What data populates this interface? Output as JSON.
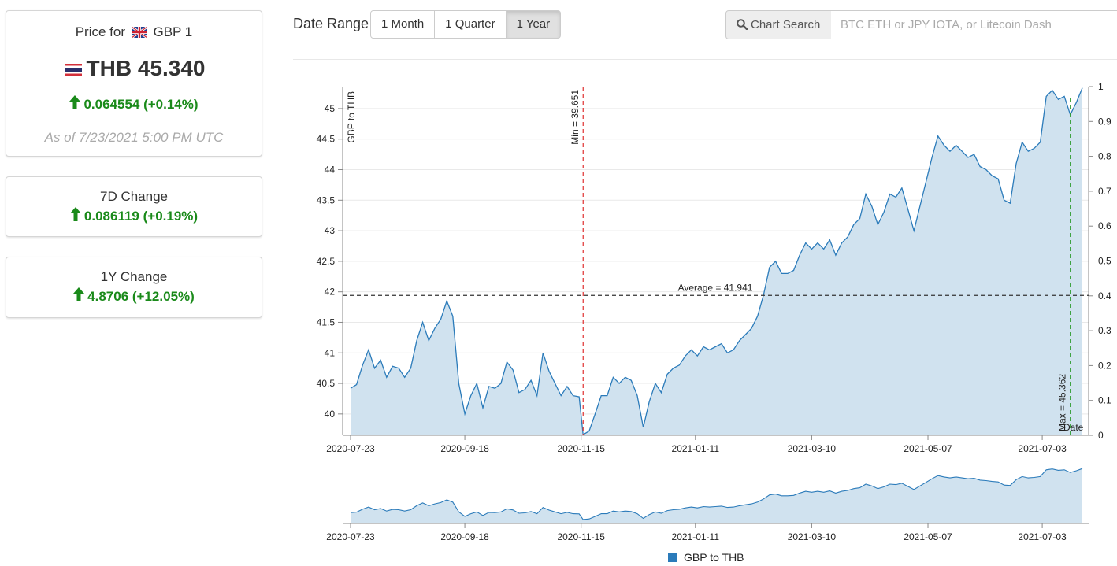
{
  "price_card": {
    "label_prefix": "Price for",
    "label_currency": "GBP 1",
    "value": "THB 45.340",
    "change": "0.064554 (+0.14%)",
    "as_of": "As of 7/23/2021 5:00 PM UTC"
  },
  "change_7d": {
    "title": "7D Change",
    "value": "0.086119 (+0.19%)"
  },
  "change_1y": {
    "title": "1Y Change",
    "value": "4.8706 (+12.05%)"
  },
  "toolbar": {
    "range_label": "Date Range",
    "buttons": [
      "1 Month",
      "1 Quarter",
      "1 Year"
    ],
    "active": "1 Year",
    "search_label": "Chart Search",
    "search_placeholder": "BTC ETH or JPY IOTA, or Litecoin Dash"
  },
  "colors": {
    "line": "#2b7bba",
    "fill": "#d0e2ef",
    "up": "#1a8a1a",
    "min_line": "#e03030",
    "max_line": "#2a9a2a",
    "avg_line": "#333333"
  },
  "chart_data": {
    "type": "area",
    "ylabel": "GBP to THB",
    "right_axis_label": "Date",
    "ylim": [
      39.65,
      45.36
    ],
    "yticks": [
      40,
      40.5,
      41,
      41.5,
      42,
      42.5,
      43,
      43.5,
      44,
      44.5,
      45
    ],
    "right_ticks": [
      0,
      0.1,
      0.2,
      0.3,
      0.4,
      0.5,
      0.6,
      0.7,
      0.8,
      0.9,
      1
    ],
    "x_range": [
      "2020-07-23",
      "2021-07-23"
    ],
    "x_ticks": [
      "2020-07-23",
      "2020-09-18",
      "2020-11-15",
      "2021-01-11",
      "2021-03-10",
      "2021-05-07",
      "2021-07-03"
    ],
    "series": [
      {
        "name": "GBP to THB",
        "points": [
          [
            "2020-07-23",
            40.42
          ],
          [
            "2020-07-26",
            40.48
          ],
          [
            "2020-07-29",
            40.8
          ],
          [
            "2020-08-01",
            41.05
          ],
          [
            "2020-08-04",
            40.75
          ],
          [
            "2020-08-07",
            40.88
          ],
          [
            "2020-08-10",
            40.6
          ],
          [
            "2020-08-13",
            40.78
          ],
          [
            "2020-08-16",
            40.75
          ],
          [
            "2020-08-19",
            40.6
          ],
          [
            "2020-08-22",
            40.75
          ],
          [
            "2020-08-25",
            41.2
          ],
          [
            "2020-08-28",
            41.5
          ],
          [
            "2020-08-31",
            41.2
          ],
          [
            "2020-09-03",
            41.4
          ],
          [
            "2020-09-06",
            41.55
          ],
          [
            "2020-09-09",
            41.85
          ],
          [
            "2020-09-12",
            41.6
          ],
          [
            "2020-09-15",
            40.5
          ],
          [
            "2020-09-18",
            40.0
          ],
          [
            "2020-09-21",
            40.3
          ],
          [
            "2020-09-24",
            40.5
          ],
          [
            "2020-09-27",
            40.1
          ],
          [
            "2020-09-30",
            40.45
          ],
          [
            "2020-10-03",
            40.42
          ],
          [
            "2020-10-06",
            40.5
          ],
          [
            "2020-10-09",
            40.85
          ],
          [
            "2020-10-12",
            40.72
          ],
          [
            "2020-10-15",
            40.35
          ],
          [
            "2020-10-18",
            40.4
          ],
          [
            "2020-10-21",
            40.55
          ],
          [
            "2020-10-24",
            40.3
          ],
          [
            "2020-10-27",
            41.0
          ],
          [
            "2020-10-30",
            40.7
          ],
          [
            "2020-11-02",
            40.5
          ],
          [
            "2020-11-05",
            40.3
          ],
          [
            "2020-11-08",
            40.45
          ],
          [
            "2020-11-11",
            40.3
          ],
          [
            "2020-11-14",
            40.28
          ],
          [
            "2020-11-16",
            39.66
          ],
          [
            "2020-11-19",
            39.72
          ],
          [
            "2020-11-22",
            40.0
          ],
          [
            "2020-11-25",
            40.3
          ],
          [
            "2020-11-28",
            40.3
          ],
          [
            "2020-12-01",
            40.6
          ],
          [
            "2020-12-04",
            40.5
          ],
          [
            "2020-12-07",
            40.6
          ],
          [
            "2020-12-10",
            40.55
          ],
          [
            "2020-12-13",
            40.3
          ],
          [
            "2020-12-16",
            39.78
          ],
          [
            "2020-12-19",
            40.2
          ],
          [
            "2020-12-22",
            40.5
          ],
          [
            "2020-12-25",
            40.35
          ],
          [
            "2020-12-28",
            40.65
          ],
          [
            "2020-12-31",
            40.75
          ],
          [
            "2021-01-03",
            40.8
          ],
          [
            "2021-01-06",
            40.95
          ],
          [
            "2021-01-09",
            41.05
          ],
          [
            "2021-01-12",
            40.95
          ],
          [
            "2021-01-15",
            41.1
          ],
          [
            "2021-01-18",
            41.05
          ],
          [
            "2021-01-21",
            41.1
          ],
          [
            "2021-01-24",
            41.15
          ],
          [
            "2021-01-27",
            41.0
          ],
          [
            "2021-01-30",
            41.05
          ],
          [
            "2021-02-02",
            41.2
          ],
          [
            "2021-02-05",
            41.3
          ],
          [
            "2021-02-08",
            41.4
          ],
          [
            "2021-02-11",
            41.6
          ],
          [
            "2021-02-14",
            41.95
          ],
          [
            "2021-02-17",
            42.4
          ],
          [
            "2021-02-20",
            42.5
          ],
          [
            "2021-02-23",
            42.3
          ],
          [
            "2021-02-26",
            42.3
          ],
          [
            "2021-03-01",
            42.35
          ],
          [
            "2021-03-04",
            42.6
          ],
          [
            "2021-03-07",
            42.8
          ],
          [
            "2021-03-10",
            42.7
          ],
          [
            "2021-03-13",
            42.8
          ],
          [
            "2021-03-16",
            42.7
          ],
          [
            "2021-03-19",
            42.85
          ],
          [
            "2021-03-22",
            42.6
          ],
          [
            "2021-03-25",
            42.8
          ],
          [
            "2021-03-28",
            42.9
          ],
          [
            "2021-03-31",
            43.1
          ],
          [
            "2021-04-03",
            43.2
          ],
          [
            "2021-04-06",
            43.6
          ],
          [
            "2021-04-09",
            43.4
          ],
          [
            "2021-04-12",
            43.1
          ],
          [
            "2021-04-15",
            43.3
          ],
          [
            "2021-04-18",
            43.6
          ],
          [
            "2021-04-21",
            43.55
          ],
          [
            "2021-04-24",
            43.7
          ],
          [
            "2021-04-27",
            43.35
          ],
          [
            "2021-04-30",
            43.0
          ],
          [
            "2021-05-03",
            43.4
          ],
          [
            "2021-05-06",
            43.8
          ],
          [
            "2021-05-09",
            44.2
          ],
          [
            "2021-05-12",
            44.55
          ],
          [
            "2021-05-15",
            44.4
          ],
          [
            "2021-05-18",
            44.3
          ],
          [
            "2021-05-21",
            44.4
          ],
          [
            "2021-05-24",
            44.3
          ],
          [
            "2021-05-27",
            44.2
          ],
          [
            "2021-05-30",
            44.25
          ],
          [
            "2021-06-02",
            44.05
          ],
          [
            "2021-06-05",
            44.0
          ],
          [
            "2021-06-08",
            43.9
          ],
          [
            "2021-06-11",
            43.85
          ],
          [
            "2021-06-14",
            43.5
          ],
          [
            "2021-06-17",
            43.45
          ],
          [
            "2021-06-20",
            44.1
          ],
          [
            "2021-06-23",
            44.45
          ],
          [
            "2021-06-26",
            44.3
          ],
          [
            "2021-06-29",
            44.35
          ],
          [
            "2021-07-02",
            44.45
          ],
          [
            "2021-07-05",
            45.2
          ],
          [
            "2021-07-08",
            45.3
          ],
          [
            "2021-07-11",
            45.15
          ],
          [
            "2021-07-14",
            45.2
          ],
          [
            "2021-07-17",
            44.9
          ],
          [
            "2021-07-20",
            45.1
          ],
          [
            "2021-07-23",
            45.34
          ]
        ]
      }
    ],
    "min": {
      "label": "Min = 39.651",
      "date": "2020-11-16"
    },
    "max": {
      "label": "Max = 45.362",
      "date": "2021-07-17"
    },
    "average": {
      "label": "Average = 41.941",
      "value": 41.941
    },
    "legend": "GBP to THB",
    "legend_position": "bottom-center"
  }
}
